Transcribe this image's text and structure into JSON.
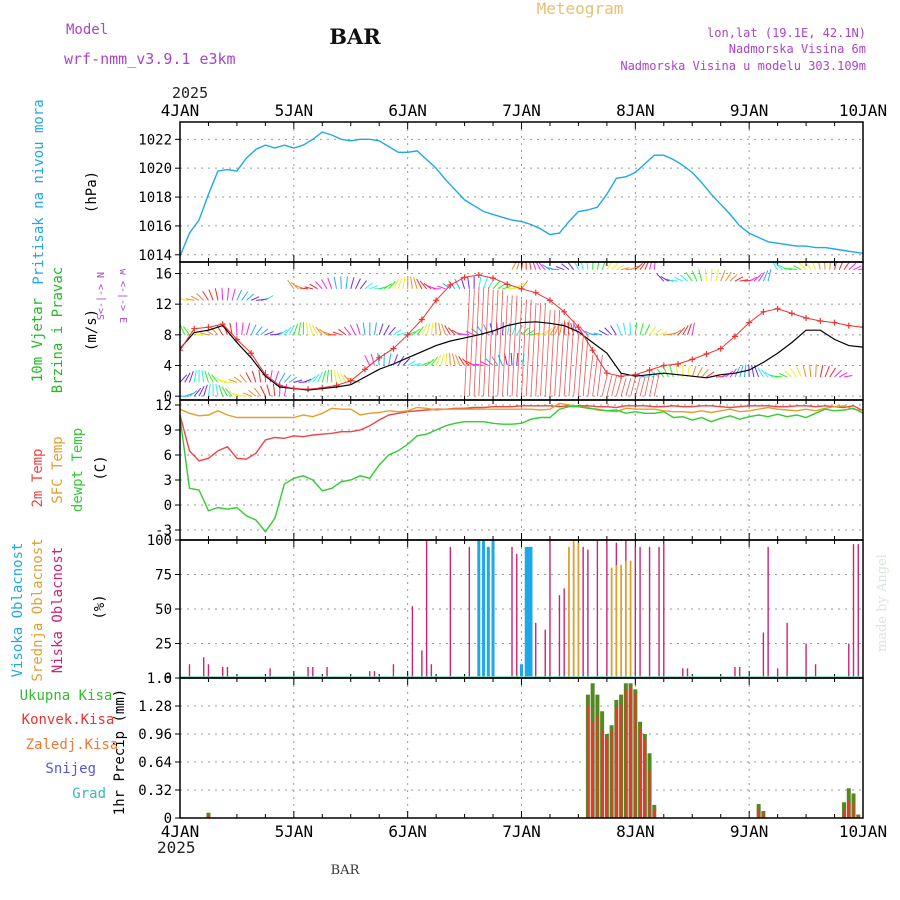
{
  "header": {
    "meteogram": "Meteogram",
    "model_label": "Model",
    "model_name": "wrf-nmm_v3.9.1 e3km",
    "station": "BAR",
    "lonlat": "lon,lat (19.1E, 42.1N)",
    "elevation": "Nadmorska Visina 6m",
    "model_elevation": "Nadmorska Visina u modelu 303.109m",
    "credit": "made by Angel",
    "footer_station": "BAR",
    "year_top": "2025",
    "year_bottom": "2025"
  },
  "colors": {
    "pressure": "#1ea8e8",
    "wind_label": "#22bb22",
    "wind_speed_line": "#000000",
    "wind_cross": "#ee3333",
    "temp2m": "#ee4444",
    "sfc_temp": "#e0a030",
    "dewpt": "#33cc33",
    "cloud_high": "#1ea8e8",
    "cloud_mid": "#e0a030",
    "cloud_low": "#cc2277",
    "precip_total": "#558822",
    "precip_conv": "#ee3333",
    "title_purple": "#aa44cc",
    "meteogram_orange": "#e8c070"
  },
  "chart_data": [
    {
      "id": "pressure",
      "type": "line",
      "label_left": "Pritisak na nivou mora",
      "unit": "(hPa)",
      "ylim": [
        1013.5,
        1023.2
      ],
      "yticks": [
        1014,
        1016,
        1018,
        1020,
        1022
      ],
      "x": [
        0,
        2,
        4,
        6,
        8,
        10,
        12,
        14,
        16,
        18,
        20,
        22,
        24,
        26,
        28,
        30,
        32,
        34,
        36,
        38,
        40,
        42,
        44,
        46,
        48,
        50,
        52,
        54,
        56,
        58,
        60,
        62,
        64,
        66,
        68,
        70,
        72,
        74,
        76,
        78,
        80,
        82,
        84,
        86,
        88,
        90,
        92,
        94,
        96,
        98,
        100,
        102,
        104,
        106,
        108,
        110,
        112,
        114,
        116,
        118,
        120,
        122,
        124,
        126,
        128,
        130,
        132,
        134,
        136,
        138,
        140,
        142,
        144
      ],
      "values": [
        1013.9,
        1015.5,
        1016.4,
        1018.2,
        1019.8,
        1019.9,
        1019.8,
        1020.7,
        1021.3,
        1021.6,
        1021.4,
        1021.6,
        1021.4,
        1021.6,
        1022.0,
        1022.5,
        1022.3,
        1022.0,
        1021.9,
        1022.0,
        1022.0,
        1021.9,
        1021.5,
        1021.1,
        1021.1,
        1021.2,
        1020.6,
        1020.0,
        1019.2,
        1018.5,
        1017.8,
        1017.4,
        1017.0,
        1016.8,
        1016.6,
        1016.4,
        1016.3,
        1016.1,
        1015.8,
        1015.4,
        1015.5,
        1016.3,
        1017.0,
        1017.1,
        1017.3,
        1018.2,
        1019.3,
        1019.4,
        1019.7,
        1020.3,
        1020.9,
        1020.9,
        1020.6,
        1020.2,
        1019.7,
        1019.0,
        1018.2,
        1017.5,
        1016.8,
        1016.0,
        1015.5,
        1015.2,
        1014.9,
        1014.8,
        1014.7,
        1014.6,
        1014.6,
        1014.5,
        1014.5,
        1014.4,
        1014.3,
        1014.2,
        1014.1
      ]
    },
    {
      "id": "wind",
      "type": "line",
      "label_left": "10m Vjetar",
      "label_left2": "Brzina i Pravac",
      "unit": "(m/s)",
      "ylim": [
        -0.5,
        17.5
      ],
      "yticks": [
        0,
        4,
        8,
        12,
        16
      ],
      "compass": "w <-|-> E",
      "compass2": "S<-|-> N",
      "x": [
        0,
        3,
        6,
        9,
        12,
        15,
        18,
        21,
        24,
        27,
        30,
        33,
        36,
        39,
        42,
        45,
        48,
        51,
        54,
        57,
        60,
        63,
        66,
        69,
        72,
        75,
        78,
        81,
        84,
        87,
        90,
        93,
        96,
        99,
        102,
        105,
        108,
        111,
        114,
        117,
        120,
        123,
        126,
        129,
        132,
        135,
        138,
        141,
        144
      ],
      "values": [
        6.2,
        8.3,
        8.6,
        9.2,
        7.0,
        5.0,
        2.6,
        1.2,
        1.0,
        0.8,
        1.0,
        1.2,
        1.5,
        2.5,
        3.5,
        4.2,
        5.0,
        5.8,
        6.6,
        7.2,
        7.6,
        8.0,
        8.5,
        9.2,
        9.6,
        9.7,
        9.5,
        9.2,
        8.4,
        7.0,
        5.6,
        3.0,
        2.6,
        2.8,
        3.0,
        2.8,
        2.6,
        2.4,
        2.8,
        3.0,
        3.4,
        4.4,
        5.6,
        7.0,
        8.6,
        8.6,
        7.4,
        6.6,
        6.4
      ],
      "gust_values": [
        6.0,
        8.8,
        9.0,
        9.4,
        7.4,
        5.6,
        2.8,
        1.4,
        1.0,
        0.9,
        1.1,
        1.4,
        2.0,
        3.5,
        5.0,
        6.2,
        8.0,
        10.0,
        12.5,
        14.5,
        15.5,
        15.8,
        15.4,
        14.6,
        14.0,
        13.5,
        12.5,
        11.0,
        9.0,
        6.0,
        3.0,
        2.6,
        2.8,
        3.4,
        4.0,
        4.2,
        4.8,
        5.5,
        6.2,
        7.8,
        9.6,
        11.0,
        11.4,
        10.8,
        10.2,
        9.8,
        9.6,
        9.2,
        9.0
      ],
      "barb_rows": [
        {
          "level": 0,
          "from": 0,
          "to": 22
        },
        {
          "level": 1.8,
          "from": 0,
          "to": 38
        },
        {
          "level": 4,
          "from": 40,
          "to": 72
        },
        {
          "level": 8,
          "from": 0,
          "to": 108
        },
        {
          "level": 12.5,
          "from": 0,
          "to": 18
        },
        {
          "level": 14,
          "from": 24,
          "to": 72
        },
        {
          "level": 16.5,
          "from": 70,
          "to": 100
        },
        {
          "level": 15,
          "from": 102,
          "to": 124
        },
        {
          "level": 16.5,
          "from": 126,
          "to": 144
        },
        {
          "level": 2.5,
          "from": 98,
          "to": 140
        }
      ]
    },
    {
      "id": "temperature",
      "type": "line",
      "label_left": "2m Temp",
      "label_mid": "SFC Temp",
      "label_right": "dewpt Temp",
      "unit": "(C)",
      "ylim": [
        -4.2,
        12.6
      ],
      "yticks": [
        -3,
        0,
        3,
        6,
        9,
        12
      ],
      "x": [
        0,
        2,
        4,
        6,
        8,
        10,
        12,
        14,
        16,
        18,
        20,
        22,
        24,
        26,
        28,
        30,
        32,
        34,
        36,
        38,
        40,
        42,
        44,
        46,
        48,
        50,
        52,
        54,
        56,
        58,
        60,
        62,
        64,
        66,
        68,
        70,
        72,
        74,
        76,
        78,
        80,
        82,
        84,
        86,
        88,
        90,
        92,
        94,
        96,
        98,
        100,
        102,
        104,
        106,
        108,
        110,
        112,
        114,
        116,
        118,
        120,
        122,
        124,
        126,
        128,
        130,
        132,
        134,
        136,
        138,
        140,
        142,
        144
      ],
      "series": [
        {
          "name": "2m Temp",
          "values": [
            10.8,
            6.5,
            5.3,
            5.6,
            6.5,
            7.0,
            5.6,
            5.5,
            6.2,
            7.8,
            8.1,
            8.0,
            8.3,
            8.2,
            8.4,
            8.5,
            8.6,
            8.8,
            8.8,
            9.0,
            9.5,
            10.2,
            10.8,
            11.0,
            11.2,
            11.3,
            11.4,
            11.5,
            11.5,
            11.6,
            11.6,
            11.7,
            11.7,
            11.8,
            11.8,
            11.8,
            11.9,
            11.9,
            11.9,
            11.9,
            11.8,
            11.9,
            11.9,
            11.9,
            11.8,
            11.8,
            11.7,
            11.9,
            11.9,
            11.9,
            11.8,
            11.8,
            11.9,
            11.8,
            11.8,
            11.9,
            11.9,
            11.8,
            11.7,
            11.8,
            11.9,
            11.9,
            11.9,
            11.8,
            11.8,
            11.9,
            11.9,
            11.8,
            11.9,
            11.8,
            11.7,
            11.9,
            11.3
          ]
        },
        {
          "name": "SFC Temp",
          "values": [
            11.5,
            11.0,
            10.7,
            10.8,
            11.3,
            10.8,
            10.5,
            10.5,
            10.5,
            10.5,
            10.5,
            10.5,
            10.5,
            10.8,
            10.6,
            11.0,
            11.6,
            11.5,
            11.5,
            10.8,
            11.0,
            11.1,
            11.3,
            11.2,
            11.3,
            11.7,
            11.6,
            11.4,
            11.5,
            11.5,
            11.5,
            11.5,
            11.5,
            11.5,
            11.5,
            11.5,
            11.5,
            11.5,
            11.4,
            11.5,
            12.2,
            12.0,
            11.8,
            11.7,
            11.4,
            11.3,
            11.2,
            11.6,
            11.5,
            11.5,
            11.5,
            11.3,
            11.2,
            11.2,
            11.1,
            11.3,
            11.1,
            11.3,
            11.5,
            11.2,
            11.3,
            11.5,
            11.7,
            11.5,
            11.4,
            11.3,
            11.5,
            11.3,
            11.6,
            11.8,
            11.9,
            11.5,
            11.3
          ]
        },
        {
          "name": "dewpt Temp",
          "values": [
            10.5,
            2.0,
            1.8,
            -0.7,
            -0.3,
            -0.5,
            -0.3,
            -1.3,
            -1.8,
            -3.2,
            -1.6,
            2.5,
            3.2,
            3.5,
            3.0,
            1.7,
            2.0,
            2.8,
            3.0,
            3.5,
            3.2,
            4.8,
            6.0,
            6.5,
            7.3,
            8.3,
            8.5,
            9.0,
            9.5,
            9.8,
            10.0,
            10.0,
            10.0,
            9.8,
            9.7,
            9.7,
            9.8,
            10.3,
            10.5,
            10.5,
            11.5,
            11.8,
            11.8,
            11.6,
            11.5,
            11.3,
            11.4,
            11.0,
            11.2,
            11.0,
            11.0,
            11.2,
            10.5,
            10.6,
            10.2,
            10.5,
            10.0,
            10.4,
            10.7,
            10.3,
            10.6,
            10.8,
            10.6,
            10.9,
            10.6,
            10.8,
            10.5,
            11.0,
            11.5,
            11.3,
            11.4,
            11.6,
            11.0
          ]
        }
      ]
    },
    {
      "id": "clouds",
      "type": "bar",
      "label_left": "Visoka Oblacnost",
      "label_mid": "Srednja Oblacnost",
      "label_right": "Niska Oblacnost",
      "unit": "(%)",
      "ylim": [
        0,
        100
      ],
      "yticks": [
        0,
        25,
        50,
        75,
        100
      ],
      "series": [
        {
          "name": "Niska Oblacnost",
          "x": [
            2,
            5,
            6,
            9,
            10,
            19,
            27,
            28,
            31,
            40,
            41,
            45,
            49,
            51,
            52,
            53,
            57,
            61,
            64,
            66,
            70,
            71,
            73,
            75,
            77,
            78,
            80,
            81,
            83,
            85,
            86,
            88,
            90,
            92,
            94,
            95,
            96,
            97,
            99,
            101,
            102,
            106,
            107,
            117,
            118,
            123,
            124,
            126,
            128,
            132,
            134,
            141,
            142,
            143
          ],
          "values": [
            10,
            15,
            10,
            8,
            8,
            7,
            8,
            8,
            8,
            5,
            5,
            10,
            52,
            20,
            100,
            10,
            95,
            95,
            95,
            82,
            95,
            90,
            75,
            40,
            35,
            100,
            60,
            65,
            95,
            95,
            93,
            100,
            100,
            98,
            100,
            80,
            95,
            95,
            95,
            95,
            97,
            7,
            7,
            8,
            8,
            33,
            95,
            7,
            40,
            25,
            10,
            25,
            97,
            97
          ]
        },
        {
          "name": "Srednja Oblacnost",
          "x": [
            82,
            83,
            84,
            91,
            92,
            93,
            94,
            95
          ],
          "values": [
            95,
            100,
            98,
            80,
            82,
            82,
            85,
            85
          ]
        },
        {
          "name": "Visoka Oblacnost",
          "x": [
            63,
            64,
            65,
            66,
            72,
            73,
            73.5,
            74
          ],
          "values": [
            100,
            100,
            95,
            100,
            10,
            95,
            95,
            95
          ]
        }
      ]
    },
    {
      "id": "precip",
      "type": "bar",
      "label_total": "Ukupna Kisa",
      "label_conv": "Konvek.Kisa",
      "label_grid": "Zaledj.Kisa",
      "label_snow": "Snijeg",
      "label_hail": "Grad",
      "unit": "1hr Precip (mm)",
      "ylim": [
        0,
        1.6
      ],
      "yticks": [
        0,
        0.32,
        0.64,
        0.96,
        1.28,
        1.6
      ],
      "ytick_labels": [
        "0",
        "0.32",
        "0.64",
        "0.96",
        "1.28",
        "1.6"
      ],
      "x": [
        6,
        86,
        87,
        88,
        89,
        90,
        91,
        92,
        93,
        94,
        95,
        96,
        97,
        98,
        99,
        100,
        122,
        123,
        140,
        141,
        142,
        143
      ],
      "values": [
        0.06,
        1.41,
        1.54,
        1.41,
        1.22,
        0.96,
        1.06,
        1.35,
        1.41,
        1.54,
        1.54,
        1.47,
        1.1,
        0.96,
        0.74,
        0.15,
        0.16,
        0.08,
        0.18,
        0.34,
        0.28,
        0.04
      ],
      "conv_values": [
        0.03,
        1.28,
        1.1,
        1.18,
        1.0,
        0.92,
        1.0,
        1.26,
        1.3,
        1.47,
        1.5,
        1.43,
        1.02,
        0.9,
        0.55,
        0.1,
        0.1,
        0.05,
        0.1,
        0.2,
        0.18,
        0.02
      ]
    }
  ],
  "xaxis": {
    "top_labels": [
      "4JAN",
      "5JAN",
      "6JAN",
      "7JAN",
      "8JAN",
      "9JAN",
      "10JAN"
    ],
    "bottom_labels": [
      "4JAN",
      "5JAN",
      "6JAN",
      "7JAN",
      "8JAN",
      "9JAN",
      "10JAN"
    ],
    "hours_per_day": 24,
    "range_hours": [
      0,
      144
    ]
  }
}
